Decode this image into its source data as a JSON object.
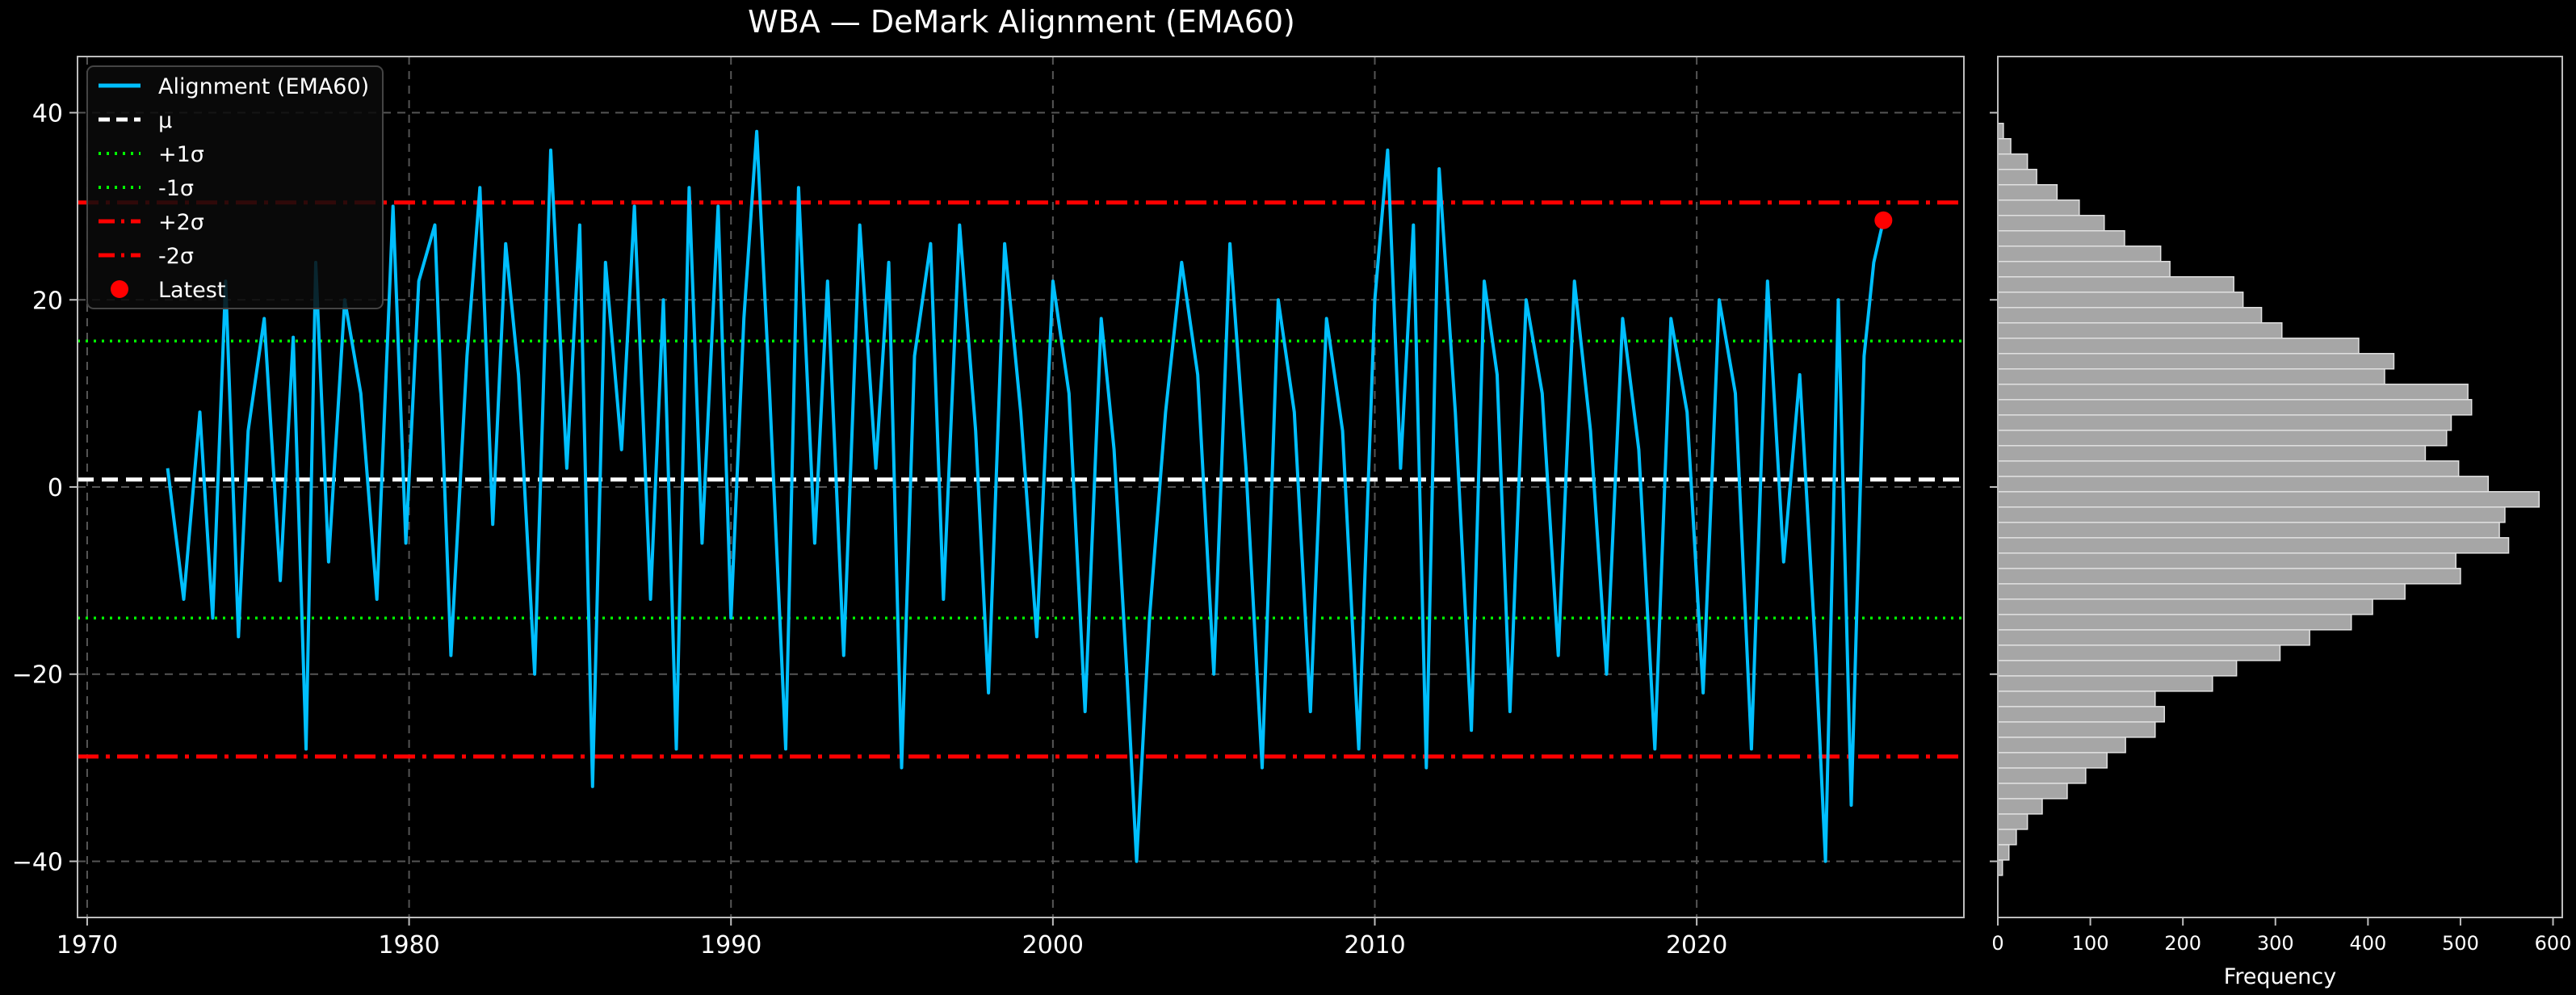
{
  "chart_data": [
    {
      "type": "line",
      "title": "WBA — DeMark Alignment (EMA60)",
      "xlabel": "",
      "ylabel": "",
      "xlim": [
        1969.7,
        2028.3
      ],
      "ylim": [
        -46,
        46
      ],
      "x_ticks": [
        1970,
        1980,
        1990,
        2000,
        2010,
        2020
      ],
      "y_ticks": [
        -40,
        -20,
        0,
        20,
        40
      ],
      "x_tick_labels": [
        "1970",
        "1980",
        "1990",
        "2000",
        "2010",
        "2020"
      ],
      "y_tick_labels": [
        "−40",
        "−20",
        "0",
        "20",
        "40"
      ],
      "grid": true,
      "legend_position": "upper-left",
      "colors": {
        "series": "#00bfff",
        "mean": "#ffffff",
        "sigma1": "#00ff00",
        "sigma2": "#ff0000",
        "latest": "#ff0000",
        "background": "#000000",
        "grid": "#555555"
      },
      "series": [
        {
          "name": "Alignment (EMA60)",
          "x": [
            1972.5,
            1973.0,
            1973.5,
            1973.9,
            1974.3,
            1974.7,
            1975.0,
            1975.5,
            1976.0,
            1976.4,
            1976.8,
            1977.1,
            1977.5,
            1978.0,
            1978.5,
            1979.0,
            1979.5,
            1979.9,
            1980.3,
            1980.8,
            1981.3,
            1981.8,
            1982.2,
            1982.6,
            1983.0,
            1983.4,
            1983.9,
            1984.4,
            1984.9,
            1985.3,
            1985.7,
            1986.1,
            1986.6,
            1987.0,
            1987.5,
            1987.9,
            1988.3,
            1988.7,
            1989.1,
            1989.6,
            1990.0,
            1990.4,
            1990.8,
            1991.2,
            1991.7,
            1992.1,
            1992.6,
            1993.0,
            1993.5,
            1994.0,
            1994.5,
            1994.9,
            1995.3,
            1995.7,
            1996.2,
            1996.6,
            1997.1,
            1997.6,
            1998.0,
            1998.5,
            1999.0,
            1999.5,
            2000.0,
            2000.5,
            2001.0,
            2001.5,
            2001.9,
            2002.3,
            2002.6,
            2003.0,
            2003.5,
            2004.0,
            2004.5,
            2005.0,
            2005.5,
            2006.0,
            2006.5,
            2007.0,
            2007.5,
            2008.0,
            2008.5,
            2009.0,
            2009.5,
            2010.0,
            2010.4,
            2010.8,
            2011.2,
            2011.6,
            2012.0,
            2012.5,
            2013.0,
            2013.4,
            2013.8,
            2014.2,
            2014.7,
            2015.2,
            2015.7,
            2016.2,
            2016.7,
            2017.2,
            2017.7,
            2018.2,
            2018.7,
            2019.2,
            2019.7,
            2020.2,
            2020.7,
            2021.2,
            2021.7,
            2022.2,
            2022.7,
            2023.2,
            2023.7,
            2024.0,
            2024.4,
            2024.8,
            2025.2,
            2025.5,
            2025.8
          ],
          "y": [
            2,
            -12,
            8,
            -14,
            22,
            -16,
            6,
            18,
            -10,
            16,
            -28,
            24,
            -8,
            20,
            10,
            -12,
            30,
            -6,
            22,
            28,
            -18,
            14,
            32,
            -4,
            26,
            12,
            -20,
            36,
            2,
            28,
            -32,
            24,
            4,
            30,
            -12,
            20,
            -28,
            32,
            -6,
            30,
            -14,
            18,
            38,
            10,
            -28,
            32,
            -6,
            22,
            -18,
            28,
            2,
            24,
            -30,
            14,
            26,
            -12,
            28,
            6,
            -22,
            26,
            8,
            -16,
            22,
            10,
            -24,
            18,
            4,
            -20,
            -40,
            -14,
            8,
            24,
            12,
            -20,
            26,
            2,
            -30,
            20,
            8,
            -24,
            18,
            6,
            -28,
            20,
            36,
            2,
            28,
            -30,
            34,
            8,
            -26,
            22,
            12,
            -24,
            20,
            10,
            -18,
            22,
            6,
            -20,
            18,
            4,
            -28,
            18,
            8,
            -22,
            20,
            10,
            -28,
            22,
            -8,
            12,
            -18,
            -40,
            20,
            -34,
            14,
            24,
            28.5
          ]
        }
      ],
      "reference_lines": [
        {
          "name": "μ",
          "value": 0.8
        },
        {
          "name": "+1σ",
          "value": 15.6
        },
        {
          "name": "-1σ",
          "value": -14.0
        },
        {
          "name": "+2σ",
          "value": 30.4
        },
        {
          "name": "-2σ",
          "value": -28.8
        }
      ],
      "latest": {
        "name": "Latest",
        "x": 2025.8,
        "y": 28.5
      }
    },
    {
      "type": "bar",
      "orientation": "horizontal",
      "xlabel": "Frequency",
      "xlim": [
        0,
        610
      ],
      "ylim": [
        -46,
        46
      ],
      "x_ticks": [
        0,
        100,
        200,
        300,
        400,
        500,
        600
      ],
      "x_tick_labels": [
        "0",
        "100",
        "200",
        "300",
        "400",
        "500",
        "600"
      ],
      "colors": {
        "bar": "#a6a6a6",
        "edge": "#e0e0e0"
      },
      "bin_start": -41.5,
      "bin_width": 1.64,
      "values": [
        5,
        12,
        20,
        32,
        48,
        75,
        95,
        118,
        138,
        170,
        180,
        170,
        232,
        258,
        305,
        337,
        382,
        405,
        440,
        500,
        495,
        552,
        542,
        548,
        585,
        530,
        498,
        462,
        485,
        490,
        512,
        508,
        418,
        428,
        390,
        307,
        285,
        265,
        255,
        186,
        176,
        137,
        115,
        88,
        64,
        42,
        32,
        14,
        6
      ]
    }
  ]
}
